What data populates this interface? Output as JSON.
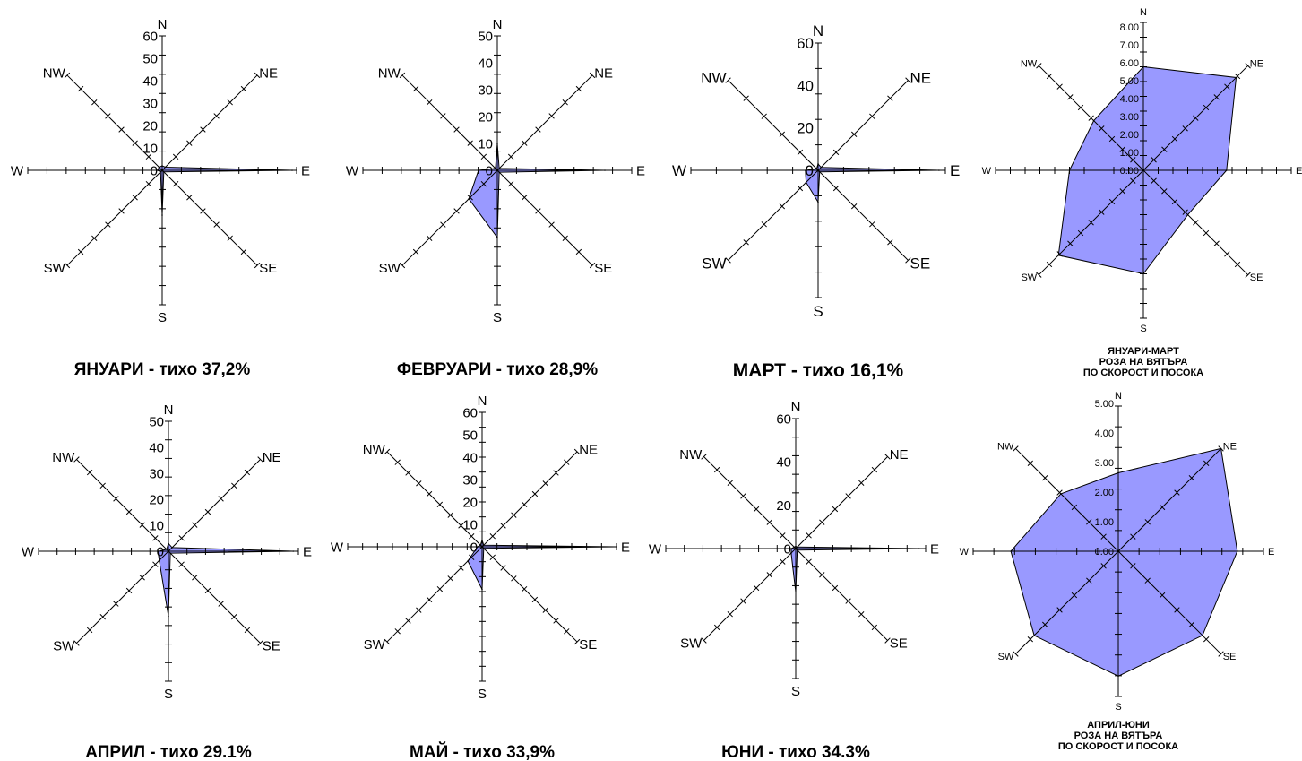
{
  "page": {
    "background": "#ffffff",
    "fill_color": "#9999ff",
    "line_color": "#000000"
  },
  "directions": [
    "N",
    "NE",
    "E",
    "SE",
    "S",
    "SW",
    "W",
    "NW"
  ],
  "chart_data": [
    {
      "type": "radar",
      "title": "ЯНУАРИ - тихо 37,2%",
      "title_lines": [
        "ЯНУАРИ - тихо 37,2%"
      ],
      "directions": [
        "N",
        "NE",
        "E",
        "SE",
        "S",
        "SW",
        "W",
        "NW"
      ],
      "values": [
        2,
        2,
        58,
        1,
        20,
        1,
        2,
        2
      ],
      "rmax": 60,
      "ticks": [
        "60",
        "50",
        "40",
        "30",
        "20",
        "10",
        "0"
      ]
    },
    {
      "type": "radar",
      "title": "ФЕВРУАРИ - тихо 28,9%",
      "title_lines": [
        "ФЕВРУАРИ - тихо 28,9%"
      ],
      "directions": [
        "N",
        "NE",
        "E",
        "SE",
        "S",
        "SW",
        "W",
        "NW"
      ],
      "values": [
        10,
        1,
        40,
        1,
        25,
        15,
        7,
        1
      ],
      "rmax": 50,
      "ticks": [
        "50",
        "40",
        "30",
        "20",
        "10",
        "0"
      ]
    },
    {
      "type": "radar",
      "title": "МАРТ - тихо 16,1%",
      "title_lines": [
        "МАРТ - тихо 16,1%"
      ],
      "directions": [
        "N",
        "NE",
        "E",
        "SE",
        "S",
        "SW",
        "W",
        "NW"
      ],
      "values": [
        3,
        2,
        57,
        1,
        15,
        8,
        6,
        1
      ],
      "rmax": 60,
      "ticks": [
        "60",
        "40",
        "20",
        "0"
      ]
    },
    {
      "type": "radar",
      "title": "ЯНУАРИ-МАРТ РОЗА НА ВЯТЪРА ПО СКОРОСТ И ПОСОКА",
      "title_lines": [
        "ЯНУАРИ-МАРТ",
        "РОЗА НА ВЯТЪРА",
        "ПО СКОРОСТ И ПОСОКА"
      ],
      "directions": [
        "N",
        "NE",
        "E",
        "SE",
        "S",
        "SW",
        "W",
        "NW"
      ],
      "values": [
        5.6,
        7.1,
        4.5,
        3.4,
        5.6,
        6.5,
        4.0,
        3.8
      ],
      "rmax": 8,
      "ticks": [
        "8.00",
        "7.00",
        "6.00",
        "5.00",
        "4.00",
        "3.00",
        "2.00",
        "1.00",
        "0.00"
      ]
    },
    {
      "type": "radar",
      "title": "АПРИЛ - тихо 29.1%",
      "title_lines": [
        "АПРИЛ - тихо 29.1%"
      ],
      "directions": [
        "N",
        "NE",
        "E",
        "SE",
        "S",
        "SW",
        "W",
        "NW"
      ],
      "values": [
        3,
        2,
        48,
        1,
        25,
        5,
        4,
        1
      ],
      "rmax": 50,
      "ticks": [
        "50",
        "40",
        "30",
        "20",
        "10",
        "0"
      ]
    },
    {
      "type": "radar",
      "title": "МАЙ - тихо 33,9%",
      "title_lines": [
        "МАЙ - тихо 33,9%"
      ],
      "directions": [
        "N",
        "NE",
        "E",
        "SE",
        "S",
        "SW",
        "W",
        "NW"
      ],
      "values": [
        3,
        1,
        60,
        1,
        19,
        9,
        2,
        1
      ],
      "rmax": 60,
      "ticks": [
        "60",
        "50",
        "40",
        "30",
        "20",
        "10",
        "0"
      ]
    },
    {
      "type": "radar",
      "title": "ЮНИ - тихо 34.3%",
      "title_lines": [
        "ЮНИ - тихо 34.3%"
      ],
      "directions": [
        "N",
        "NE",
        "E",
        "SE",
        "S",
        "SW",
        "W",
        "NW"
      ],
      "values": [
        1,
        1,
        57,
        1,
        20,
        3,
        2,
        1
      ],
      "rmax": 60,
      "ticks": [
        "60",
        "40",
        "20",
        "0"
      ]
    },
    {
      "type": "radar",
      "title": "АПРИЛ-ЮНИ РОЗА НА ВЯТЪРА ПО СКОРОСТ И ПОСОКА",
      "title_lines": [
        "АПРИЛ-ЮНИ",
        "РОЗА НА ВЯТЪРА",
        "ПО СКОРОСТ И ПОСОКА"
      ],
      "directions": [
        "N",
        "NE",
        "E",
        "SE",
        "S",
        "SW",
        "W",
        "NW"
      ],
      "values": [
        2.7,
        5.0,
        4.1,
        4.1,
        4.3,
        4.1,
        3.7,
        2.8
      ],
      "rmax": 5,
      "ticks": [
        "5.00",
        "4.00",
        "3.00",
        "2.00",
        "1.00",
        "0.00"
      ]
    }
  ]
}
